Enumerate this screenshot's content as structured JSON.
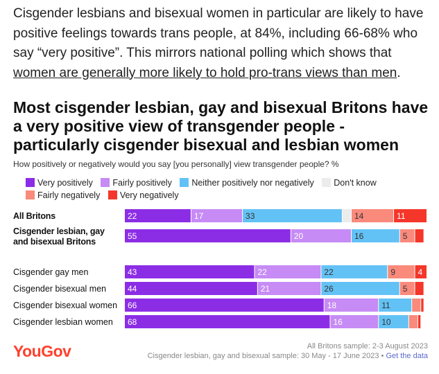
{
  "intro": {
    "text": "Cisgender lesbians and bisexual women in particular are likely to have positive feelings towards trans people, at 84%, including 66-68% who say “very positive”. This mirrors national polling which shows that ",
    "link_text": "women are generally more likely to hold pro-trans views than men",
    "tail": "."
  },
  "chart_data": {
    "type": "bar",
    "orientation": "horizontal",
    "stacked": true,
    "title": "Most cisgender lesbian, gay and bisexual Britons have a very positive view of transgender people - particularly cisgender bisexual and lesbian women",
    "subtitle": "How positively or negatively would you say [you personally] view transgender people? %",
    "categories": [
      "All Britons",
      "Cisgender lesbian, gay and bisexual Britons",
      "Cisgender gay men",
      "Cisgender bisexual men",
      "Cisgender bisexual women",
      "Cisgender lesbian women"
    ],
    "series": [
      {
        "name": "Very positively",
        "color": "#8c2de6",
        "values": [
          22,
          55,
          43,
          44,
          66,
          68
        ]
      },
      {
        "name": "Fairly positively",
        "color": "#c68bf5",
        "values": [
          17,
          20,
          22,
          21,
          18,
          16
        ]
      },
      {
        "name": "Neither positively nor negatively",
        "color": "#63c2f5",
        "values": [
          33,
          16,
          22,
          26,
          11,
          10
        ]
      },
      {
        "name": "Don't know",
        "color": "#ececec",
        "values": [
          3,
          0,
          0,
          0,
          0,
          0
        ]
      },
      {
        "name": "Fairly negatively",
        "color": "#f98a7c",
        "values": [
          14,
          5,
          9,
          5,
          3,
          3
        ]
      },
      {
        "name": "Very negatively",
        "color": "#f4372a",
        "values": [
          11,
          3,
          4,
          3,
          1,
          1
        ]
      }
    ],
    "data_labels": [
      [
        "22",
        "17",
        "33",
        "",
        "14",
        "11"
      ],
      [
        "55",
        "20",
        "16",
        "",
        "5",
        ""
      ],
      [
        "43",
        "22",
        "22",
        "",
        "9",
        "4"
      ],
      [
        "44",
        "21",
        "26",
        "",
        "5",
        ""
      ],
      [
        "66",
        "18",
        "11",
        "",
        "",
        ""
      ],
      [
        "68",
        "16",
        "10",
        "",
        "",
        ""
      ]
    ],
    "xlim": [
      0,
      100
    ]
  },
  "legend": {
    "items": [
      "Very positively",
      "Fairly positively",
      "Neither positively nor negatively",
      "Don't know",
      "Fairly negatively",
      "Very negatively"
    ]
  },
  "row_labels": {
    "all_britons": "All Britons",
    "lgb_line1": "Cisgender lesbian, gay",
    "lgb_line2": "and bisexual Britons",
    "gay_men": "Cisgender gay men",
    "bi_men": "Cisgender bisexual men",
    "bi_women": "Cisgender bisexual women",
    "lesbian_women": "Cisgender lesbian women"
  },
  "footer": {
    "logo": "YouGov",
    "note1": "All Britons sample: 2-3 August 2023",
    "note2": "Cisgender lesbian, gay and bisexual sample: 30 May - 17 June 2023 •",
    "get_data": "Get the data"
  }
}
